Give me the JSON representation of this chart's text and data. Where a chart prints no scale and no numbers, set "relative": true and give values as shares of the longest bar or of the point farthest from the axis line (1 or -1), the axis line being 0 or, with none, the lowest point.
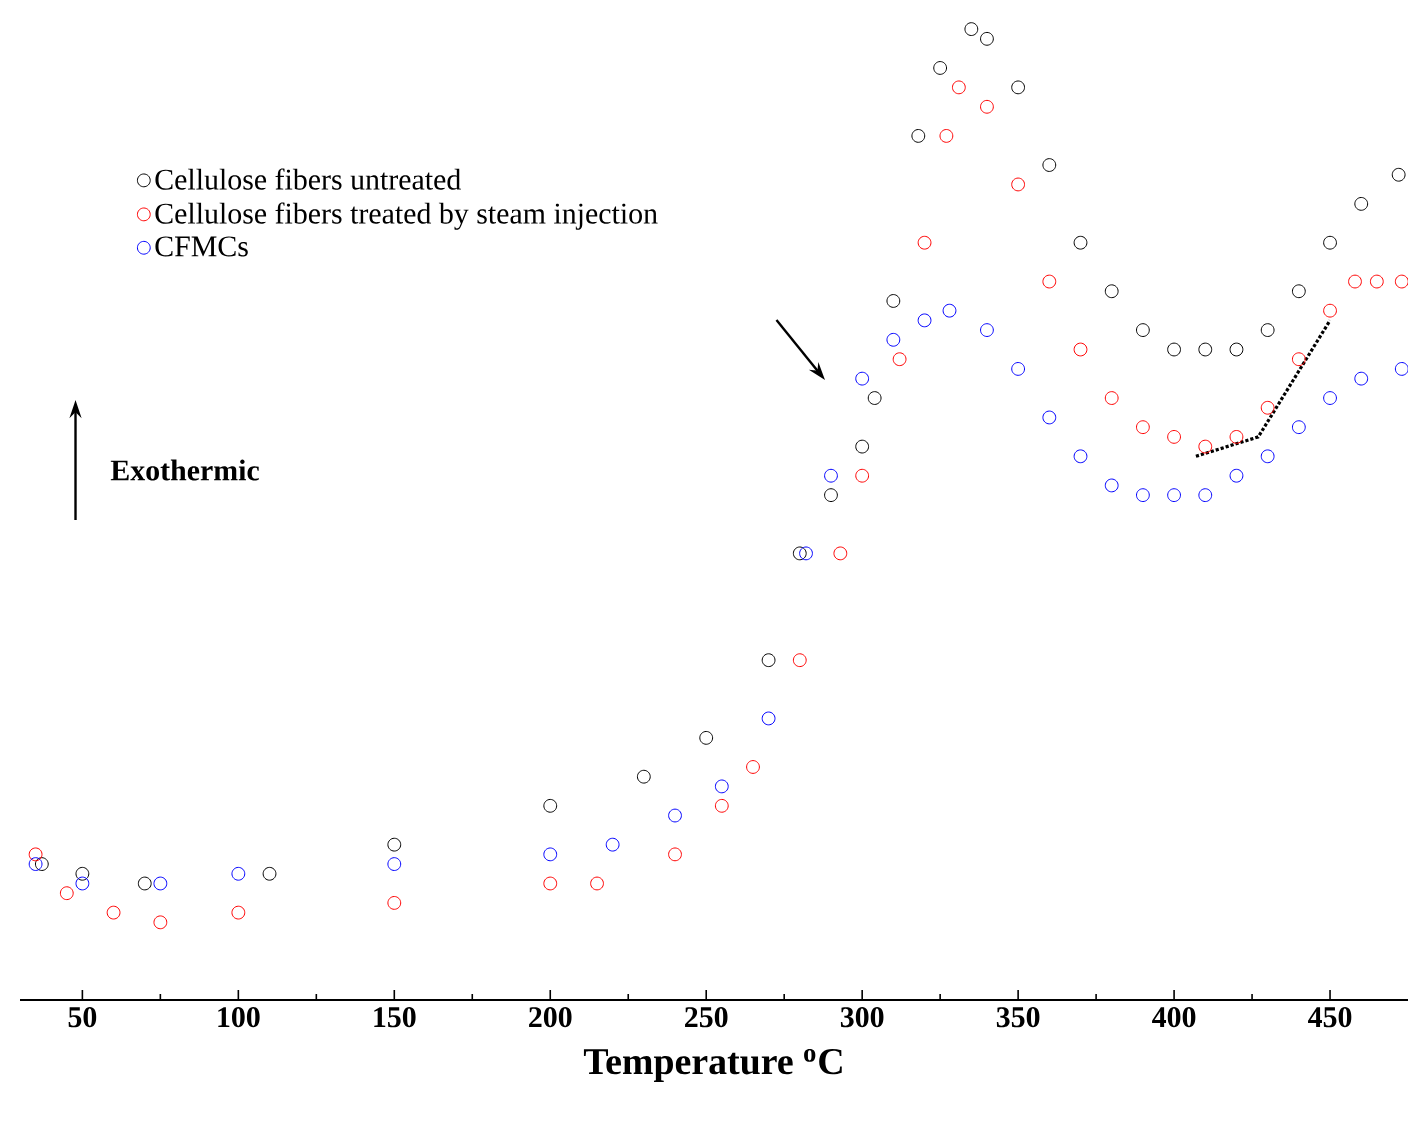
{
  "chart_data": {
    "type": "scatter",
    "relative": true,
    "xlabel": "Temperature $^{o}$C",
    "xlim": [
      30,
      475
    ],
    "xticks": [
      50,
      100,
      150,
      200,
      250,
      300,
      350,
      400,
      450
    ],
    "marker": "circle",
    "legend": "top left",
    "annotations": [
      "Exothermic"
    ],
    "series": [
      {
        "name": "Cellulose fibers untreated",
        "color": "#000000",
        "x": [
          37,
          50,
          70,
          110,
          150,
          200,
          230,
          250,
          270,
          280,
          290,
          300,
          304,
          310,
          318,
          325,
          335,
          340,
          350,
          360,
          370,
          380,
          390,
          400,
          410,
          420,
          430,
          440,
          450,
          460,
          472
        ],
        "values": [
          0.14,
          0.13,
          0.12,
          0.13,
          0.16,
          0.2,
          0.23,
          0.27,
          0.35,
          0.46,
          0.52,
          0.57,
          0.62,
          0.72,
          0.89,
          0.96,
          1.0,
          0.99,
          0.94,
          0.86,
          0.78,
          0.73,
          0.69,
          0.67,
          0.67,
          0.67,
          0.69,
          0.73,
          0.78,
          0.82,
          0.85
        ]
      },
      {
        "name": "Cellulose fibers treated by steam injection",
        "color": "#ff0000",
        "x": [
          35,
          45,
          60,
          75,
          100,
          150,
          200,
          215,
          240,
          255,
          265,
          280,
          293,
          300,
          312,
          320,
          327,
          331,
          340,
          350,
          360,
          370,
          380,
          390,
          400,
          410,
          420,
          430,
          440,
          450,
          458,
          465,
          473
        ],
        "values": [
          0.15,
          0.11,
          0.09,
          0.08,
          0.09,
          0.1,
          0.12,
          0.12,
          0.15,
          0.2,
          0.24,
          0.35,
          0.46,
          0.54,
          0.66,
          0.78,
          0.89,
          0.94,
          0.92,
          0.84,
          0.74,
          0.67,
          0.62,
          0.59,
          0.58,
          0.57,
          0.58,
          0.61,
          0.66,
          0.71,
          0.74,
          0.74,
          0.74
        ]
      },
      {
        "name": "CFMCs",
        "color": "#0000ff",
        "x": [
          35,
          50,
          75,
          100,
          150,
          200,
          220,
          240,
          255,
          270,
          282,
          290,
          300,
          310,
          320,
          328,
          340,
          350,
          360,
          370,
          380,
          390,
          400,
          410,
          420,
          430,
          440,
          450,
          460,
          473
        ],
        "values": [
          0.14,
          0.12,
          0.12,
          0.13,
          0.14,
          0.15,
          0.16,
          0.19,
          0.22,
          0.29,
          0.46,
          0.54,
          0.64,
          0.68,
          0.7,
          0.71,
          0.69,
          0.65,
          0.6,
          0.56,
          0.53,
          0.52,
          0.52,
          0.52,
          0.54,
          0.56,
          0.59,
          0.62,
          0.64,
          0.65
        ]
      },
      {
        "type": "line",
        "line_style": "dotted",
        "marker": "none",
        "color": "#000000",
        "x": [
          407,
          427,
          450
        ],
        "values": [
          0.56,
          0.58,
          0.7
        ]
      }
    ]
  }
}
